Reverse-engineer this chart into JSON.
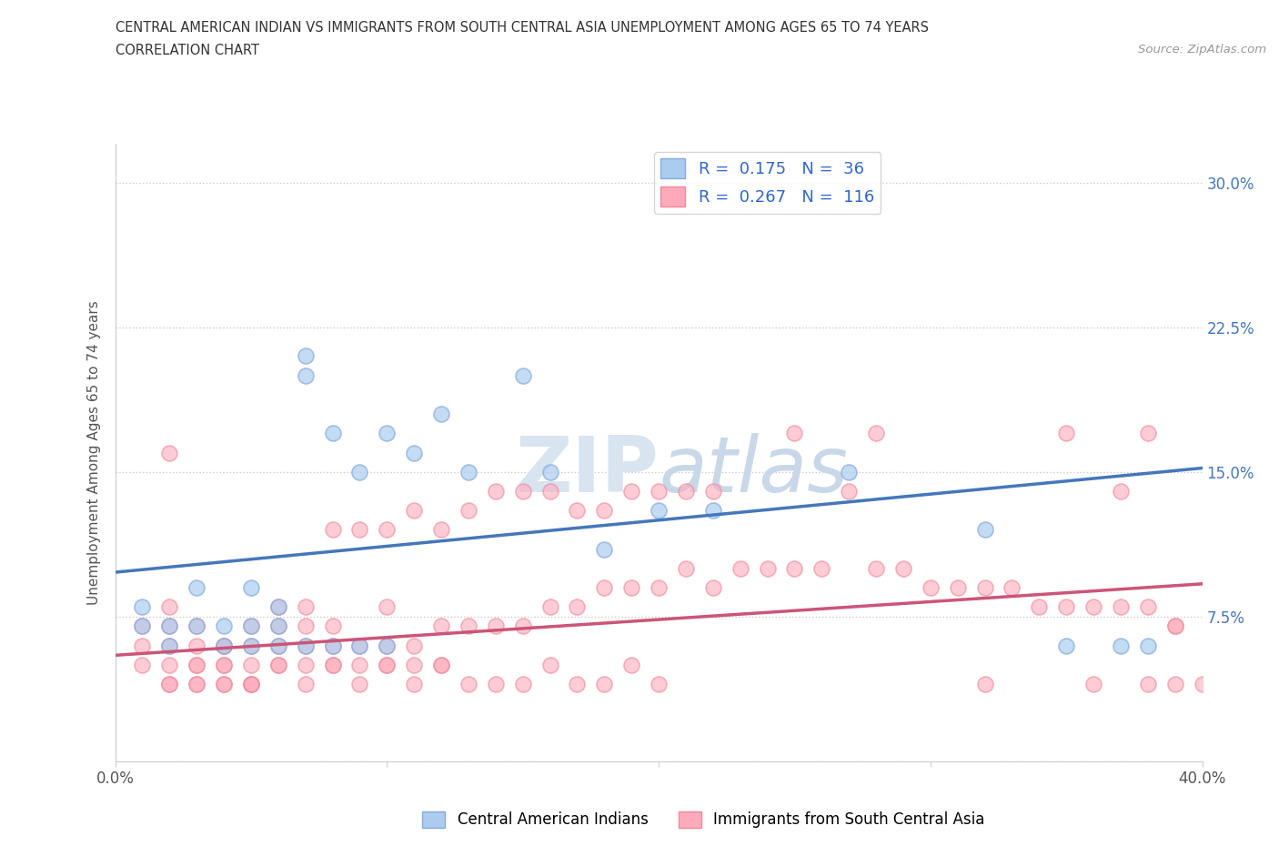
{
  "title_line1": "CENTRAL AMERICAN INDIAN VS IMMIGRANTS FROM SOUTH CENTRAL ASIA UNEMPLOYMENT AMONG AGES 65 TO 74 YEARS",
  "title_line2": "CORRELATION CHART",
  "source_text": "Source: ZipAtlas.com",
  "ylabel": "Unemployment Among Ages 65 to 74 years",
  "xlim": [
    0.0,
    0.4
  ],
  "ylim": [
    0.0,
    0.32
  ],
  "xtick_positions": [
    0.0,
    0.1,
    0.2,
    0.3,
    0.4
  ],
  "xtick_labels": [
    "0.0%",
    "",
    "",
    "",
    "40.0%"
  ],
  "ytick_positions": [
    0.0,
    0.075,
    0.15,
    0.225,
    0.3
  ],
  "ytick_labels": [
    "",
    "7.5%",
    "15.0%",
    "22.5%",
    "30.0%"
  ],
  "blue_R": 0.175,
  "blue_N": 36,
  "pink_R": 0.267,
  "pink_N": 116,
  "blue_fill_color": "#AACCEE",
  "blue_edge_color": "#88AADD",
  "pink_fill_color": "#FFAABB",
  "pink_edge_color": "#EE8899",
  "blue_line_color": "#4477BB",
  "pink_line_color": "#CC5577",
  "watermark_color": "#DDDDEE",
  "grid_color": "#CCCCCC",
  "legend_label_blue": "Central American Indians",
  "legend_label_pink": "Immigrants from South Central Asia",
  "blue_x": [
    0.01,
    0.01,
    0.02,
    0.02,
    0.03,
    0.03,
    0.04,
    0.04,
    0.05,
    0.05,
    0.05,
    0.06,
    0.06,
    0.06,
    0.07,
    0.07,
    0.07,
    0.08,
    0.08,
    0.09,
    0.09,
    0.1,
    0.1,
    0.11,
    0.12,
    0.13,
    0.15,
    0.16,
    0.18,
    0.2,
    0.22,
    0.27,
    0.32,
    0.35,
    0.37,
    0.38
  ],
  "blue_y": [
    0.07,
    0.08,
    0.06,
    0.07,
    0.07,
    0.09,
    0.06,
    0.07,
    0.06,
    0.07,
    0.09,
    0.06,
    0.07,
    0.08,
    0.06,
    0.2,
    0.21,
    0.06,
    0.17,
    0.06,
    0.15,
    0.06,
    0.17,
    0.16,
    0.18,
    0.15,
    0.2,
    0.15,
    0.11,
    0.13,
    0.13,
    0.15,
    0.12,
    0.06,
    0.06,
    0.06
  ],
  "pink_x": [
    0.01,
    0.01,
    0.01,
    0.02,
    0.02,
    0.02,
    0.02,
    0.02,
    0.02,
    0.03,
    0.03,
    0.03,
    0.03,
    0.03,
    0.04,
    0.04,
    0.04,
    0.04,
    0.04,
    0.05,
    0.05,
    0.05,
    0.05,
    0.05,
    0.06,
    0.06,
    0.06,
    0.06,
    0.07,
    0.07,
    0.07,
    0.07,
    0.08,
    0.08,
    0.08,
    0.08,
    0.09,
    0.09,
    0.09,
    0.1,
    0.1,
    0.1,
    0.1,
    0.11,
    0.11,
    0.11,
    0.12,
    0.12,
    0.12,
    0.13,
    0.13,
    0.14,
    0.14,
    0.15,
    0.15,
    0.16,
    0.16,
    0.17,
    0.17,
    0.18,
    0.18,
    0.19,
    0.19,
    0.2,
    0.2,
    0.21,
    0.21,
    0.22,
    0.22,
    0.23,
    0.24,
    0.25,
    0.25,
    0.26,
    0.27,
    0.28,
    0.28,
    0.29,
    0.3,
    0.31,
    0.32,
    0.32,
    0.33,
    0.34,
    0.35,
    0.35,
    0.36,
    0.36,
    0.37,
    0.37,
    0.38,
    0.38,
    0.38,
    0.39,
    0.39,
    0.39,
    0.4,
    0.02,
    0.03,
    0.04,
    0.05,
    0.06,
    0.07,
    0.08,
    0.09,
    0.1,
    0.11,
    0.12,
    0.13,
    0.14,
    0.15,
    0.16,
    0.17,
    0.18,
    0.19,
    0.2
  ],
  "pink_y": [
    0.05,
    0.06,
    0.07,
    0.04,
    0.05,
    0.06,
    0.07,
    0.08,
    0.04,
    0.04,
    0.05,
    0.06,
    0.07,
    0.04,
    0.05,
    0.06,
    0.04,
    0.05,
    0.06,
    0.04,
    0.05,
    0.06,
    0.07,
    0.04,
    0.05,
    0.06,
    0.07,
    0.08,
    0.05,
    0.06,
    0.07,
    0.08,
    0.05,
    0.06,
    0.07,
    0.12,
    0.05,
    0.06,
    0.12,
    0.06,
    0.08,
    0.12,
    0.05,
    0.06,
    0.13,
    0.05,
    0.07,
    0.12,
    0.05,
    0.07,
    0.13,
    0.07,
    0.14,
    0.07,
    0.14,
    0.08,
    0.14,
    0.08,
    0.13,
    0.09,
    0.13,
    0.09,
    0.14,
    0.09,
    0.14,
    0.1,
    0.14,
    0.09,
    0.14,
    0.1,
    0.1,
    0.1,
    0.17,
    0.1,
    0.14,
    0.1,
    0.17,
    0.1,
    0.09,
    0.09,
    0.09,
    0.04,
    0.09,
    0.08,
    0.08,
    0.17,
    0.08,
    0.04,
    0.08,
    0.14,
    0.08,
    0.04,
    0.17,
    0.07,
    0.04,
    0.07,
    0.04,
    0.16,
    0.05,
    0.04,
    0.04,
    0.05,
    0.04,
    0.05,
    0.04,
    0.05,
    0.04,
    0.05,
    0.04,
    0.04,
    0.04,
    0.05,
    0.04,
    0.04,
    0.05,
    0.04
  ]
}
